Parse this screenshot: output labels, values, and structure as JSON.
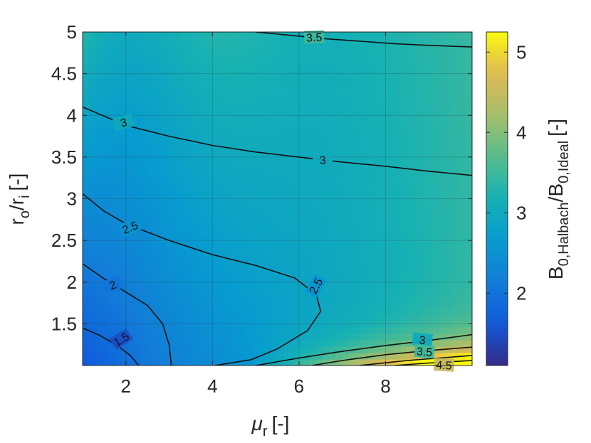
{
  "chart_data": {
    "type": "heatmap",
    "subtype": "filled-contour",
    "title": "",
    "xlabel": {
      "main": "μ",
      "sub": "r",
      "unit": "[-]"
    },
    "ylabel": {
      "main": "r",
      "sub1": "o",
      "mid": "/r",
      "sub2": "i",
      "unit": "[-]"
    },
    "colorbar_label": {
      "main": "B",
      "sub1": "0,Halbach",
      "mid": "/B",
      "sub2": "0,Ideal",
      "unit": "[-]"
    },
    "xlim": [
      1,
      10
    ],
    "ylim": [
      1,
      5
    ],
    "clim": [
      1.1,
      5.25
    ],
    "colormap": "parula",
    "grid": true,
    "x_ticks": [
      2,
      4,
      6,
      8
    ],
    "y_ticks": [
      1.5,
      2,
      2.5,
      3,
      3.5,
      4,
      4.5,
      5
    ],
    "y_tick_labels": [
      "1.5",
      "2",
      "2.5",
      "3",
      "3.5",
      "4",
      "4.5",
      "5"
    ],
    "colorbar_ticks": [
      2,
      3,
      4,
      5
    ],
    "contour_lines": [
      {
        "level": 1.5,
        "label": "1.5",
        "points": [
          [
            1.0,
            1.45
          ],
          [
            1.4,
            1.36
          ],
          [
            1.8,
            1.24
          ],
          [
            2.1,
            1.12
          ],
          [
            2.3,
            1.0
          ]
        ]
      },
      {
        "level": 2,
        "label": "2",
        "points": [
          [
            1.0,
            2.22
          ],
          [
            1.5,
            2.04
          ],
          [
            2.0,
            1.88
          ],
          [
            2.5,
            1.72
          ],
          [
            2.85,
            1.5
          ],
          [
            3.0,
            1.25
          ],
          [
            3.05,
            1.0
          ]
        ]
      },
      {
        "level": 2.5,
        "label": "2.5",
        "points": [
          [
            1.0,
            3.06
          ],
          [
            1.5,
            2.85
          ],
          [
            2.0,
            2.7
          ],
          [
            3.0,
            2.5
          ],
          [
            4.0,
            2.33
          ],
          [
            5.0,
            2.2
          ],
          [
            5.9,
            2.05
          ],
          [
            6.4,
            1.85
          ],
          [
            6.5,
            1.65
          ],
          [
            6.2,
            1.42
          ],
          [
            5.5,
            1.2
          ],
          [
            4.9,
            1.07
          ],
          [
            4.05,
            1.0
          ]
        ]
      },
      {
        "level": 3,
        "label": "3",
        "points": [
          [
            1.0,
            4.1
          ],
          [
            2.0,
            3.88
          ],
          [
            3.0,
            3.75
          ],
          [
            4.0,
            3.64
          ],
          [
            5.0,
            3.56
          ],
          [
            6.0,
            3.5
          ],
          [
            7.0,
            3.44
          ],
          [
            8.0,
            3.39
          ],
          [
            9.0,
            3.33
          ],
          [
            10.0,
            3.28
          ]
        ]
      },
      {
        "level": 3.5,
        "label": "3.5",
        "points": [
          [
            5.0,
            5.0
          ],
          [
            5.8,
            4.96
          ],
          [
            6.6,
            4.92
          ],
          [
            7.4,
            4.89
          ],
          [
            8.2,
            4.86
          ],
          [
            9.0,
            4.84
          ],
          [
            10.0,
            4.82
          ]
        ]
      },
      {
        "level": 3,
        "label": "3",
        "points": [
          [
            5.0,
            1.0
          ],
          [
            6.0,
            1.09
          ],
          [
            7.0,
            1.17
          ],
          [
            8.0,
            1.24
          ],
          [
            9.0,
            1.3
          ],
          [
            10.0,
            1.37
          ]
        ]
      },
      {
        "level": 3.5,
        "label": "3.5",
        "points": [
          [
            6.3,
            1.0
          ],
          [
            7.0,
            1.06
          ],
          [
            8.0,
            1.13
          ],
          [
            9.0,
            1.18
          ],
          [
            10.0,
            1.22
          ]
        ]
      },
      {
        "level": 4,
        "label": "",
        "points": [
          [
            7.4,
            1.0
          ],
          [
            8.5,
            1.06
          ],
          [
            10.0,
            1.12
          ]
        ]
      },
      {
        "level": 4.5,
        "label": "4.5",
        "points": [
          [
            8.2,
            1.0
          ],
          [
            9.0,
            1.03
          ],
          [
            10.0,
            1.06
          ]
        ]
      }
    ],
    "contour_labels": [
      {
        "text": "1.5",
        "x": 1.9,
        "y": 1.31,
        "angle": 32
      },
      {
        "text": "2",
        "x": 1.7,
        "y": 1.96,
        "angle": 20
      },
      {
        "text": "2.5",
        "x": 2.1,
        "y": 2.65,
        "angle": 22
      },
      {
        "text": "2.5",
        "x": 6.4,
        "y": 1.95,
        "angle": 62
      },
      {
        "text": "3",
        "x": 1.95,
        "y": 3.91,
        "angle": 14
      },
      {
        "text": "3",
        "x": 6.55,
        "y": 3.46,
        "angle": 3
      },
      {
        "text": "3.5",
        "x": 6.35,
        "y": 4.93,
        "angle": 2
      },
      {
        "text": "3",
        "x": 8.85,
        "y": 1.3,
        "angle": -6
      },
      {
        "text": "3.5",
        "x": 8.9,
        "y": 1.16,
        "angle": -5
      },
      {
        "text": "4.5",
        "x": 9.35,
        "y": 1.0,
        "angle": -3
      }
    ]
  }
}
